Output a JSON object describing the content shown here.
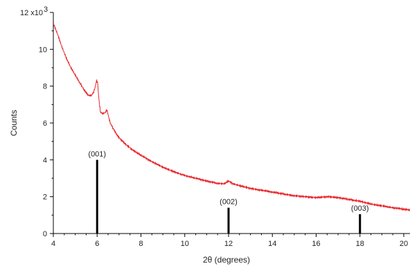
{
  "chart_data": {
    "type": "line",
    "title": "",
    "xlabel": "2θ (degrees)",
    "ylabel": "Counts",
    "xlim": [
      4,
      20
    ],
    "ylim": [
      0,
      12000
    ],
    "x_ticks": [
      4,
      6,
      8,
      10,
      12,
      14,
      16,
      18,
      20
    ],
    "x_tick_labels": [
      "4",
      "6",
      "8",
      "10",
      "12",
      "14",
      "16",
      "18",
      "20"
    ],
    "y_ticks": [
      0,
      2000,
      4000,
      6000,
      8000,
      10000,
      12000
    ],
    "y_tick_labels": [
      "0",
      "2",
      "4",
      "6",
      "8",
      "10",
      "12 x10"
    ],
    "y_multiplier_exponent": "3",
    "grid": false,
    "legend": "none",
    "series": [
      {
        "color": "#e8262b",
        "x": [
          4.0,
          4.2,
          4.4,
          4.6,
          4.8,
          5.0,
          5.2,
          5.4,
          5.6,
          5.75,
          5.85,
          5.92,
          5.97,
          6.02,
          6.08,
          6.15,
          6.25,
          6.35,
          6.45,
          6.5,
          6.6,
          6.8,
          7.0,
          7.3,
          7.6,
          8.0,
          8.5,
          9.0,
          9.5,
          10.0,
          10.5,
          11.0,
          11.5,
          11.8,
          12.0,
          12.2,
          12.5,
          13.0,
          13.5,
          14.0,
          14.5,
          15.0,
          15.5,
          16.0,
          16.5,
          17.0,
          17.5,
          18.0,
          18.5,
          19.0,
          19.5,
          20.0,
          20.3
        ],
        "y": [
          11400,
          10800,
          10100,
          9500,
          9000,
          8600,
          8200,
          7800,
          7500,
          7500,
          7700,
          8000,
          8300,
          8200,
          7300,
          6600,
          6500,
          6550,
          6700,
          6450,
          6000,
          5550,
          5200,
          4850,
          4550,
          4250,
          3900,
          3600,
          3350,
          3150,
          3000,
          2850,
          2720,
          2700,
          2850,
          2700,
          2600,
          2450,
          2350,
          2250,
          2150,
          2050,
          2000,
          1950,
          2000,
          1950,
          1850,
          1750,
          1600,
          1500,
          1400,
          1320,
          1280
        ]
      }
    ],
    "markers": [
      {
        "x": 6,
        "value": 4000,
        "label": "(001)"
      },
      {
        "x": 12,
        "value": 1400,
        "label": "(002)"
      },
      {
        "x": 18,
        "value": 1050,
        "label": "(003)"
      }
    ]
  }
}
